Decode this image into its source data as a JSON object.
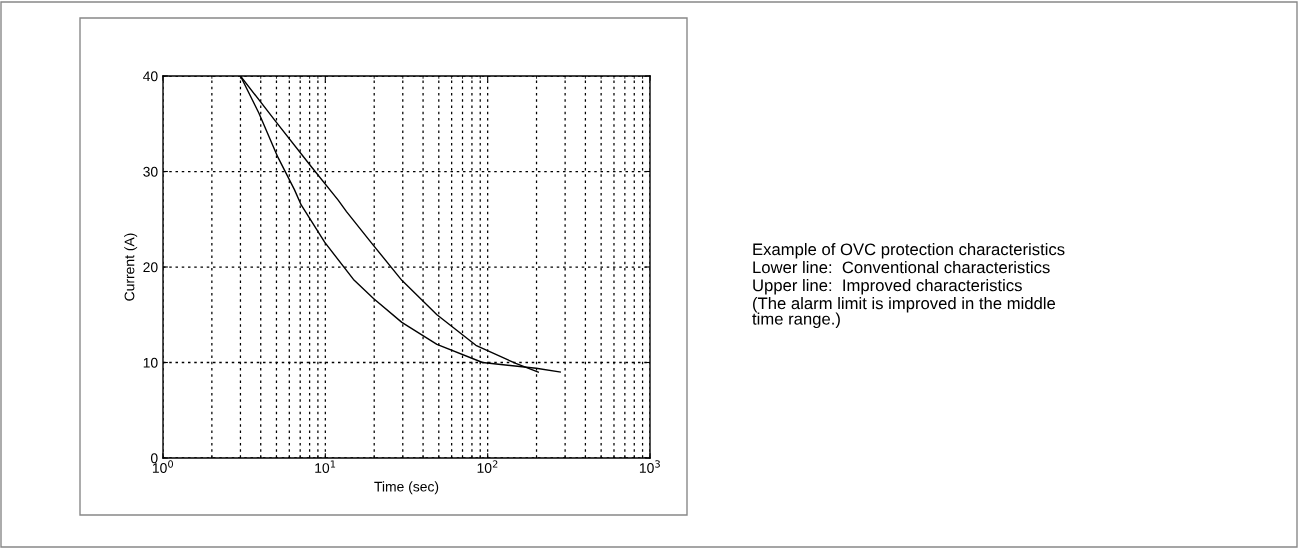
{
  "chart_data": {
    "type": "line",
    "xlabel": "Time (sec)",
    "ylabel": "Current (A)",
    "log": "x",
    "xlim": [
      1,
      1000
    ],
    "xticks": [
      {
        "value": 1,
        "label": "10$^{0}$"
      },
      {
        "value": 10,
        "label": "10$^{1}$"
      },
      {
        "value": 100,
        "label": "10$^{2}$"
      },
      {
        "value": 1000,
        "label": "10$^{3}$"
      }
    ],
    "ylim": [
      0,
      40
    ],
    "yticks": [
      0,
      10,
      20,
      30,
      40
    ],
    "grid": true,
    "line_style": "solid",
    "marker": "none",
    "series": [
      {
        "color": "#000000",
        "x": [
          3,
          3.9,
          5.1,
          6.45,
          7.1,
          9.9,
          14.9,
          19.8,
          29.6,
          48.7,
          93,
          199,
          280
        ],
        "values": [
          40,
          36.1,
          31.5,
          28.1,
          26.5,
          22.6,
          18.7,
          16.7,
          14.2,
          11.9,
          10.0,
          9.4,
          9.0
        ]
      },
      {
        "color": "#000000",
        "x": [
          3,
          4.97,
          8.2,
          12.0,
          13.5,
          19.5,
          29.6,
          48.7,
          84.6,
          149,
          205
        ],
        "values": [
          40,
          35.2,
          30.5,
          27.0,
          25.8,
          22.4,
          18.6,
          15.0,
          11.8,
          9.9,
          9.0
        ]
      }
    ],
    "annotations": [
      "Example of OVC protection characteristics",
      "Lower line:  Conventional characteristics",
      "Upper line:  Improved characteristics",
      "(The alarm limit is improved in the middle\ntime range.)"
    ]
  }
}
